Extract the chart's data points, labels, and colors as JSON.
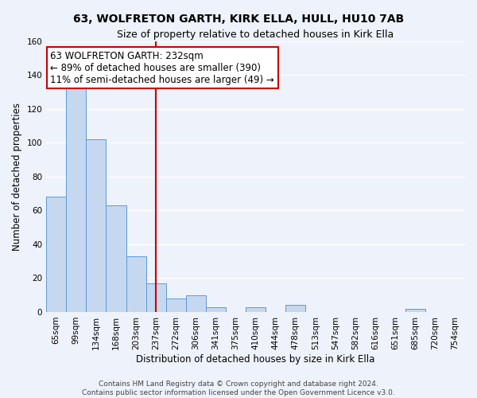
{
  "title": "63, WOLFRETON GARTH, KIRK ELLA, HULL, HU10 7AB",
  "subtitle": "Size of property relative to detached houses in Kirk Ella",
  "xlabel": "Distribution of detached houses by size in Kirk Ella",
  "ylabel": "Number of detached properties",
  "bar_labels": [
    "65sqm",
    "99sqm",
    "134sqm",
    "168sqm",
    "203sqm",
    "237sqm",
    "272sqm",
    "306sqm",
    "341sqm",
    "375sqm",
    "410sqm",
    "444sqm",
    "478sqm",
    "513sqm",
    "547sqm",
    "582sqm",
    "616sqm",
    "651sqm",
    "685sqm",
    "720sqm",
    "754sqm"
  ],
  "bar_heights": [
    68,
    132,
    102,
    63,
    33,
    17,
    8,
    10,
    3,
    0,
    3,
    0,
    4,
    0,
    0,
    0,
    0,
    0,
    2,
    0,
    0
  ],
  "bar_color": "#c5d8f0",
  "bar_edge_color": "#5b9bd5",
  "vline_x_index": 5,
  "vline_color": "#cc0000",
  "ylim": [
    0,
    160
  ],
  "yticks": [
    0,
    20,
    40,
    60,
    80,
    100,
    120,
    140,
    160
  ],
  "annotation_title": "63 WOLFRETON GARTH: 232sqm",
  "annotation_line1": "← 89% of detached houses are smaller (390)",
  "annotation_line2": "11% of semi-detached houses are larger (49) →",
  "annotation_box_color": "#ffffff",
  "annotation_box_edge": "#cc0000",
  "footer_line1": "Contains HM Land Registry data © Crown copyright and database right 2024.",
  "footer_line2": "Contains public sector information licensed under the Open Government Licence v3.0.",
  "title_fontsize": 10,
  "subtitle_fontsize": 9,
  "axis_label_fontsize": 8.5,
  "tick_fontsize": 7.5,
  "annotation_fontsize": 8.5,
  "footer_fontsize": 6.5,
  "background_color": "#eef2fa",
  "plot_bg_color": "#eef2fa",
  "grid_color": "#ffffff"
}
